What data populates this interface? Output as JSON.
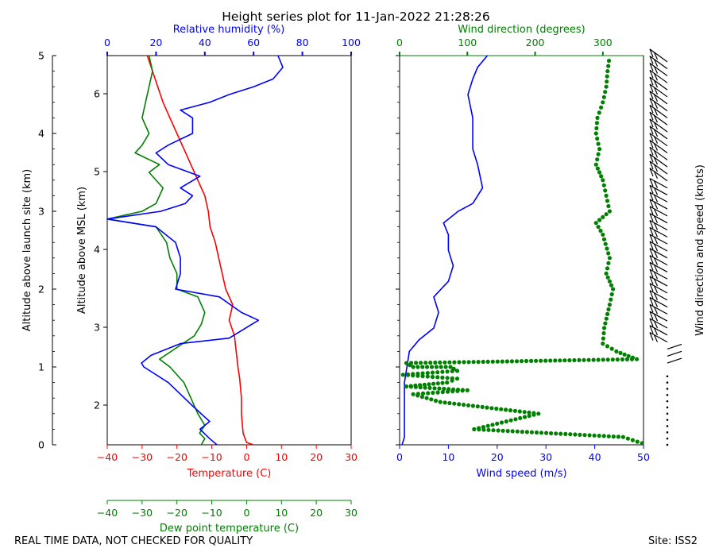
{
  "title": "Height series plot for 11-Jan-2022 21:28:26",
  "footer_left": "REAL TIME DATA, NOT CHECKED FOR QUALITY",
  "footer_right": "Site: ISS2",
  "colors": {
    "temperature": "#ff0000",
    "dewpoint": "#008000",
    "rh": "#0000ff",
    "wind_speed": "#0000ff",
    "wind_dir": "#008000",
    "barbs": "#000000"
  },
  "chart_data": [
    {
      "type": "line",
      "name": "thermo-panel",
      "axes": {
        "agl": {
          "label": "Altitude above launch site (km)",
          "range": [
            0,
            5
          ],
          "ticks": [
            0,
            1,
            2,
            3,
            4,
            5
          ]
        },
        "msl": {
          "label": "Altitude above MSL (km)",
          "range": [
            1.49,
            6.49
          ],
          "ticks": [
            2,
            3,
            4,
            5,
            6
          ]
        },
        "temperature": {
          "label": "Temperature (C)",
          "range": [
            -40,
            30
          ],
          "ticks": [
            -40,
            -30,
            -20,
            -10,
            0,
            10,
            20,
            30
          ]
        },
        "rh": {
          "label": "Relative humidity (%)",
          "range": [
            0,
            100
          ],
          "ticks": [
            0,
            20,
            40,
            60,
            80,
            100
          ]
        },
        "dewpoint": {
          "label": "Dew point temperature (C)",
          "range": [
            -40,
            30
          ],
          "ticks": [
            -40,
            -30,
            -20,
            -10,
            0,
            10,
            20,
            30
          ]
        }
      },
      "series": [
        {
          "name": "Temperature",
          "axis": "temperature",
          "color": "#ff0000",
          "points": [
            [
              2,
              0
            ],
            [
              0,
              0.03
            ],
            [
              -1,
              0.15
            ],
            [
              -1.5,
              0.4
            ],
            [
              -1.5,
              0.6
            ],
            [
              -2,
              0.85
            ],
            [
              -2.5,
              1
            ],
            [
              -3,
              1.2
            ],
            [
              -3.5,
              1.4
            ],
            [
              -5,
              1.6
            ],
            [
              -4,
              1.8
            ],
            [
              -6,
              2
            ],
            [
              -7,
              2.2
            ],
            [
              -8,
              2.4
            ],
            [
              -9,
              2.6
            ],
            [
              -10.5,
              2.8
            ],
            [
              -11,
              3
            ],
            [
              -12,
              3.2
            ],
            [
              -14,
              3.4
            ],
            [
              -16,
              3.6
            ],
            [
              -18,
              3.8
            ],
            [
              -20,
              4
            ],
            [
              -22,
              4.2
            ],
            [
              -24,
              4.4
            ],
            [
              -25.5,
              4.6
            ],
            [
              -27,
              4.8
            ],
            [
              -28.5,
              5
            ]
          ]
        },
        {
          "name": "Dew point",
          "axis": "dewpoint",
          "color": "#008000",
          "points": [
            [
              -13,
              0
            ],
            [
              -12,
              0.08
            ],
            [
              -13.5,
              0.15
            ],
            [
              -12,
              0.25
            ],
            [
              -14,
              0.4
            ],
            [
              -16,
              0.6
            ],
            [
              -18,
              0.8
            ],
            [
              -22,
              1
            ],
            [
              -25,
              1.1
            ],
            [
              -20,
              1.25
            ],
            [
              -15,
              1.4
            ],
            [
              -13,
              1.55
            ],
            [
              -12,
              1.7
            ],
            [
              -14,
              1.9
            ],
            [
              -20,
              2
            ],
            [
              -20,
              2.2
            ],
            [
              -22,
              2.4
            ],
            [
              -23,
              2.6
            ],
            [
              -26,
              2.8
            ],
            [
              -40,
              2.9
            ],
            [
              -30,
              3
            ],
            [
              -26,
              3.1
            ],
            [
              -24,
              3.3
            ],
            [
              -28,
              3.5
            ],
            [
              -25,
              3.6
            ],
            [
              -32,
              3.75
            ],
            [
              -30,
              3.85
            ],
            [
              -28,
              4
            ],
            [
              -30,
              4.2
            ],
            [
              -29,
              4.4
            ],
            [
              -28,
              4.6
            ],
            [
              -27,
              4.8
            ],
            [
              -28,
              5
            ]
          ]
        },
        {
          "name": "Relative humidity",
          "axis": "rh",
          "color": "#0000ff",
          "points": [
            [
              45,
              0
            ],
            [
              42,
              0.08
            ],
            [
              38,
              0.2
            ],
            [
              42,
              0.3
            ],
            [
              35,
              0.5
            ],
            [
              25,
              0.8
            ],
            [
              15,
              1
            ],
            [
              14,
              1.05
            ],
            [
              18,
              1.15
            ],
            [
              30,
              1.3
            ],
            [
              50,
              1.37
            ],
            [
              62,
              1.6
            ],
            [
              55,
              1.7
            ],
            [
              46,
              1.9
            ],
            [
              28,
              2
            ],
            [
              30,
              2.2
            ],
            [
              30,
              2.4
            ],
            [
              28,
              2.6
            ],
            [
              20,
              2.8
            ],
            [
              0,
              2.9
            ],
            [
              22,
              3
            ],
            [
              32,
              3.1
            ],
            [
              35,
              3.2
            ],
            [
              30,
              3.3
            ],
            [
              38,
              3.45
            ],
            [
              25,
              3.6
            ],
            [
              20,
              3.75
            ],
            [
              25,
              3.85
            ],
            [
              35,
              4
            ],
            [
              35,
              4.2
            ],
            [
              30,
              4.3
            ],
            [
              42,
              4.4
            ],
            [
              50,
              4.5
            ],
            [
              60,
              4.6
            ],
            [
              68,
              4.7
            ],
            [
              72,
              4.85
            ],
            [
              70,
              5
            ]
          ]
        }
      ]
    },
    {
      "type": "line",
      "name": "wind-panel",
      "axes": {
        "wind_speed": {
          "label": "Wind speed (m/s)",
          "range": [
            0,
            50
          ],
          "ticks": [
            0,
            10,
            20,
            30,
            40,
            50
          ]
        },
        "wind_dir": {
          "label": "Wind direction (degrees)",
          "range": [
            0,
            360
          ],
          "ticks": [
            0,
            100,
            200,
            300
          ]
        },
        "barb_axis": {
          "label": "Wind direction and speed (knots)"
        }
      },
      "series": [
        {
          "name": "Wind speed",
          "axis": "wind_speed",
          "color": "#0000ff",
          "points": [
            [
              0.5,
              0
            ],
            [
              1,
              0.1
            ],
            [
              1,
              0.3
            ],
            [
              1,
              0.5
            ],
            [
              1,
              0.8
            ],
            [
              1.5,
              1
            ],
            [
              2,
              1.2
            ],
            [
              4,
              1.35
            ],
            [
              7,
              1.5
            ],
            [
              8,
              1.7
            ],
            [
              7,
              1.9
            ],
            [
              10,
              2.1
            ],
            [
              11,
              2.3
            ],
            [
              10,
              2.5
            ],
            [
              10,
              2.7
            ],
            [
              9,
              2.85
            ],
            [
              12,
              3
            ],
            [
              15,
              3.1
            ],
            [
              17,
              3.3
            ],
            [
              16,
              3.6
            ],
            [
              15,
              3.8
            ],
            [
              15,
              4
            ],
            [
              15,
              4.2
            ],
            [
              14,
              4.5
            ],
            [
              15,
              4.7
            ],
            [
              16,
              4.85
            ],
            [
              18,
              5
            ]
          ]
        },
        {
          "name": "Wind direction",
          "axis": "wind_dir",
          "color": "#008000",
          "points": [
            [
              365,
              0
            ],
            [
              330,
              0.1
            ],
            [
              110,
              0.2
            ],
            [
              205,
              0.4
            ],
            [
              60,
              0.55
            ],
            [
              20,
              0.65
            ],
            [
              100,
              0.7
            ],
            [
              10,
              0.75
            ],
            [
              70,
              0.8
            ],
            [
              85,
              0.85
            ],
            [
              5,
              0.9
            ],
            [
              85,
              0.95
            ],
            [
              75,
              1
            ],
            [
              20,
              1
            ],
            [
              10,
              1.05
            ],
            [
              350,
              1.1
            ],
            [
              320,
              1.2
            ],
            [
              300,
              1.3
            ],
            [
              302,
              1.5
            ],
            [
              310,
              1.8
            ],
            [
              315,
              2
            ],
            [
              305,
              2.2
            ],
            [
              310,
              2.4
            ],
            [
              300,
              2.7
            ],
            [
              290,
              2.85
            ],
            [
              310,
              3
            ],
            [
              305,
              3.2
            ],
            [
              300,
              3.4
            ],
            [
              290,
              3.6
            ],
            [
              295,
              3.8
            ],
            [
              290,
              4
            ],
            [
              292,
              4.2
            ],
            [
              300,
              4.4
            ],
            [
              305,
              4.6
            ],
            [
              307,
              4.8
            ],
            [
              310,
              5
            ]
          ]
        }
      ]
    }
  ]
}
